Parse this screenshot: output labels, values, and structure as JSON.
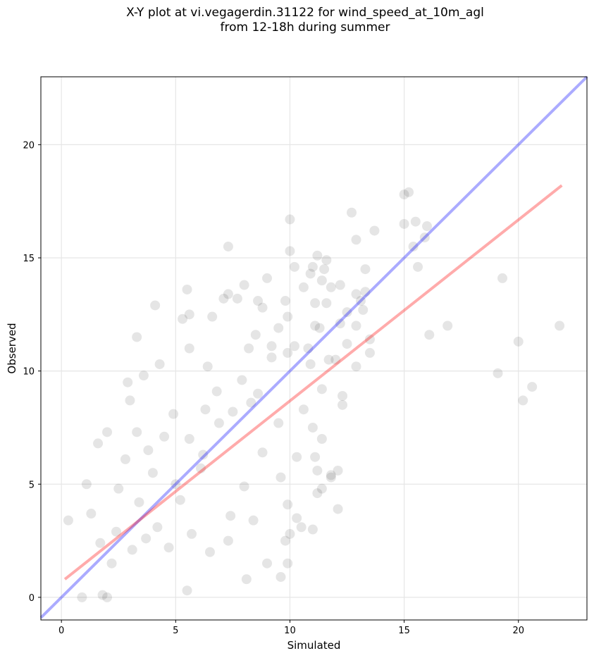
{
  "title_line1": "X-Y plot at vi.vegagerdin.31122 for wind_speed_at_10m_agl",
  "title_line2": "from 12-18h during summer",
  "chart_data": {
    "type": "scatter",
    "xlabel": "Simulated",
    "ylabel": "Observed",
    "xlim": [
      -0.9,
      23
    ],
    "ylim": [
      -1,
      23
    ],
    "xticks": [
      0,
      5,
      10,
      15,
      20
    ],
    "yticks": [
      0,
      5,
      10,
      15,
      20
    ],
    "xtick_labels": [
      "0",
      "5",
      "10",
      "15",
      "20"
    ],
    "ytick_labels": [
      "0",
      "5",
      "10",
      "15",
      "20"
    ],
    "grid": true,
    "point_color": "#000000",
    "identity_line_color": "#0000ff",
    "fit_line_color": "#ff0000",
    "identity_line": {
      "x": [
        -0.9,
        23
      ],
      "y": [
        -0.9,
        23
      ]
    },
    "fit_line": {
      "x": [
        0.15,
        21.9
      ],
      "y": [
        0.8,
        18.2
      ]
    },
    "points": [
      [
        15.2,
        17.9
      ],
      [
        15.0,
        17.8
      ],
      [
        12.7,
        17.0
      ],
      [
        15.5,
        16.6
      ],
      [
        10.0,
        16.7
      ],
      [
        13.7,
        16.2
      ],
      [
        15.0,
        16.5
      ],
      [
        12.9,
        15.8
      ],
      [
        15.9,
        15.9
      ],
      [
        16.0,
        16.4
      ],
      [
        7.3,
        15.5
      ],
      [
        15.4,
        15.5
      ],
      [
        10.0,
        15.3
      ],
      [
        11.2,
        15.1
      ],
      [
        11.6,
        14.9
      ],
      [
        10.2,
        14.6
      ],
      [
        11.0,
        14.6
      ],
      [
        11.5,
        14.5
      ],
      [
        13.3,
        14.5
      ],
      [
        15.6,
        14.6
      ],
      [
        19.3,
        14.1
      ],
      [
        9.0,
        14.1
      ],
      [
        10.9,
        14.3
      ],
      [
        11.4,
        14.0
      ],
      [
        10.6,
        13.7
      ],
      [
        11.8,
        13.7
      ],
      [
        12.2,
        13.8
      ],
      [
        13.1,
        13.1
      ],
      [
        5.5,
        13.6
      ],
      [
        8.0,
        13.8
      ],
      [
        7.3,
        13.4
      ],
      [
        12.9,
        13.4
      ],
      [
        13.3,
        13.5
      ],
      [
        9.8,
        13.1
      ],
      [
        8.6,
        13.1
      ],
      [
        7.1,
        13.2
      ],
      [
        7.7,
        13.2
      ],
      [
        4.1,
        12.9
      ],
      [
        11.1,
        13.0
      ],
      [
        11.6,
        13.0
      ],
      [
        12.5,
        12.6
      ],
      [
        13.2,
        12.7
      ],
      [
        8.8,
        12.8
      ],
      [
        9.9,
        12.4
      ],
      [
        5.6,
        12.5
      ],
      [
        6.6,
        12.4
      ],
      [
        5.3,
        12.3
      ],
      [
        11.1,
        12.0
      ],
      [
        11.3,
        11.9
      ],
      [
        12.2,
        12.1
      ],
      [
        12.9,
        12.0
      ],
      [
        16.9,
        12.0
      ],
      [
        21.8,
        12.0
      ],
      [
        3.3,
        11.5
      ],
      [
        13.5,
        11.4
      ],
      [
        16.1,
        11.6
      ],
      [
        20.0,
        11.3
      ],
      [
        10.2,
        11.1
      ],
      [
        10.8,
        11.0
      ],
      [
        12.5,
        11.2
      ],
      [
        9.2,
        11.1
      ],
      [
        8.2,
        11.0
      ],
      [
        5.6,
        11.0
      ],
      [
        11.7,
        10.5
      ],
      [
        12.0,
        10.5
      ],
      [
        12.9,
        10.2
      ],
      [
        10.9,
        10.3
      ],
      [
        9.9,
        10.8
      ],
      [
        4.3,
        10.3
      ],
      [
        13.5,
        10.8
      ],
      [
        19.1,
        9.9
      ],
      [
        6.4,
        10.2
      ],
      [
        3.6,
        9.8
      ],
      [
        2.9,
        9.5
      ],
      [
        11.4,
        9.2
      ],
      [
        12.3,
        8.9
      ],
      [
        12.3,
        8.5
      ],
      [
        20.6,
        9.3
      ],
      [
        20.2,
        8.7
      ],
      [
        3.0,
        8.7
      ],
      [
        10.6,
        8.3
      ],
      [
        6.3,
        8.3
      ],
      [
        11.0,
        7.5
      ],
      [
        4.5,
        7.1
      ],
      [
        2.0,
        7.3
      ],
      [
        1.6,
        6.8
      ],
      [
        11.4,
        7.0
      ],
      [
        10.3,
        6.2
      ],
      [
        11.1,
        6.2
      ],
      [
        11.2,
        5.6
      ],
      [
        12.1,
        5.6
      ],
      [
        11.8,
        5.4
      ],
      [
        11.4,
        4.8
      ],
      [
        11.2,
        4.6
      ],
      [
        12.1,
        3.9
      ],
      [
        11.8,
        5.3
      ],
      [
        9.6,
        5.3
      ],
      [
        9.9,
        4.1
      ],
      [
        10.3,
        3.5
      ],
      [
        10.0,
        2.8
      ],
      [
        10.5,
        3.1
      ],
      [
        11.0,
        3.0
      ],
      [
        9.8,
        2.5
      ],
      [
        9.0,
        1.5
      ],
      [
        9.9,
        1.5
      ],
      [
        9.6,
        0.9
      ],
      [
        8.1,
        0.8
      ],
      [
        5.5,
        0.3
      ],
      [
        2.0,
        0.0
      ],
      [
        0.9,
        0.0
      ],
      [
        1.8,
        0.1
      ],
      [
        0.3,
        3.4
      ],
      [
        1.1,
        5.0
      ],
      [
        2.4,
        2.9
      ],
      [
        3.1,
        2.1
      ],
      [
        4.7,
        2.2
      ],
      [
        5.7,
        2.8
      ],
      [
        6.1,
        5.7
      ],
      [
        3.4,
        4.2
      ],
      [
        4.2,
        3.1
      ],
      [
        5.0,
        5.0
      ],
      [
        3.8,
        6.5
      ],
      [
        2.5,
        4.8
      ],
      [
        1.7,
        2.4
      ],
      [
        2.2,
        1.5
      ],
      [
        7.4,
        3.6
      ],
      [
        8.0,
        4.9
      ],
      [
        6.9,
        7.7
      ],
      [
        7.9,
        9.6
      ],
      [
        8.6,
        9.0
      ],
      [
        6.2,
        6.3
      ],
      [
        6.8,
        9.1
      ],
      [
        7.5,
        8.2
      ],
      [
        5.6,
        7.0
      ],
      [
        4.9,
        8.1
      ],
      [
        4.0,
        5.5
      ],
      [
        5.2,
        4.3
      ],
      [
        3.3,
        7.3
      ],
      [
        2.8,
        6.1
      ],
      [
        1.3,
        3.7
      ],
      [
        3.7,
        2.6
      ],
      [
        6.5,
        2.0
      ],
      [
        7.3,
        2.5
      ],
      [
        8.4,
        3.4
      ],
      [
        8.8,
        6.4
      ],
      [
        9.5,
        7.7
      ],
      [
        8.3,
        8.6
      ],
      [
        9.2,
        10.6
      ],
      [
        9.5,
        11.9
      ],
      [
        8.5,
        11.6
      ]
    ]
  }
}
